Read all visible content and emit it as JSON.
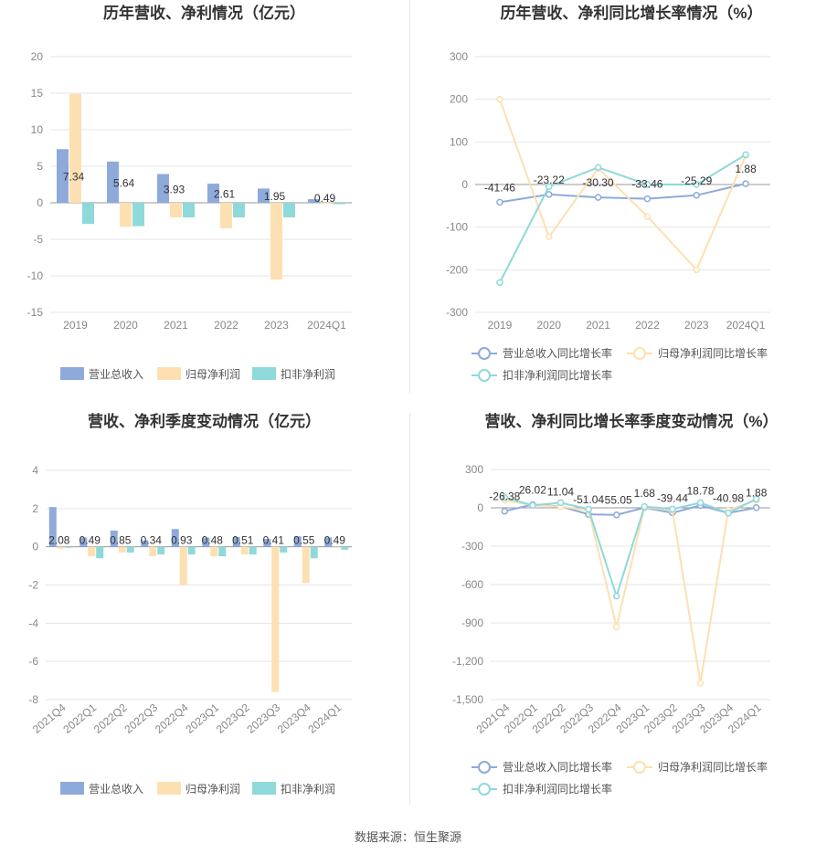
{
  "colors": {
    "revenue": "#8eaadb",
    "net_profit": "#fde0b2",
    "deducted_profit": "#8fd9da",
    "grid": "#e6e6e6",
    "axis_text": "#888888",
    "title_text": "#333333"
  },
  "source_text": "数据来源：恒生聚源",
  "chart_data": [
    {
      "type": "bar",
      "title": "历年营收、净利情况（亿元）",
      "categories": [
        "2019",
        "2020",
        "2021",
        "2022",
        "2023",
        "2024Q1"
      ],
      "ylim": [
        -15,
        20
      ],
      "yticks": [
        20,
        15,
        10,
        5,
        0,
        -5,
        -10,
        -15
      ],
      "series": [
        {
          "name": "营业总收入",
          "values": [
            7.34,
            5.64,
            3.93,
            2.61,
            1.95,
            0.49
          ]
        },
        {
          "name": "归母净利润",
          "values": [
            14.9,
            -3.3,
            -2.0,
            -3.5,
            -10.5,
            0.0
          ]
        },
        {
          "name": "扣非净利润",
          "values": [
            -2.9,
            -3.2,
            -2.0,
            -2.0,
            -2.0,
            -0.2
          ]
        }
      ],
      "data_labels": [
        "7.34",
        "5.64",
        "3.93",
        "2.61",
        "1.95",
        "0.49"
      ],
      "legend": [
        "营业总收入",
        "归母净利润",
        "扣非净利润"
      ],
      "grid": true,
      "legend_position": "bottom"
    },
    {
      "type": "line",
      "title": "历年营收、净利同比增长率情况（%）",
      "categories": [
        "2019",
        "2020",
        "2021",
        "2022",
        "2023",
        "2024Q1"
      ],
      "ylim": [
        -300,
        300
      ],
      "yticks": [
        300,
        200,
        100,
        0,
        -100,
        -200,
        -300
      ],
      "series": [
        {
          "name": "营业总收入同比增长率",
          "values": [
            -41.46,
            -23.22,
            -30.3,
            -33.46,
            -25.29,
            1.88
          ]
        },
        {
          "name": "归母净利润同比增长率",
          "values": [
            200,
            -123,
            38,
            -75,
            -200,
            68
          ]
        },
        {
          "name": "扣非净利润同比增长率",
          "values": [
            -230,
            -5,
            40,
            0,
            0,
            70
          ]
        }
      ],
      "data_labels": [
        "-41.46",
        "-23.22",
        "-30.30",
        "-33.46",
        "-25.29",
        "1.88"
      ],
      "legend": [
        "营业总收入同比增长率",
        "归母净利润同比增长率",
        "扣非净利润同比增长率"
      ],
      "grid": true,
      "legend_position": "bottom"
    },
    {
      "type": "bar",
      "title": "营收、净利季度变动情况（亿元）",
      "categories": [
        "2021Q4",
        "2022Q1",
        "2022Q2",
        "2022Q3",
        "2022Q4",
        "2023Q1",
        "2023Q2",
        "2023Q3",
        "2023Q4",
        "2024Q1"
      ],
      "ylim": [
        -8,
        4
      ],
      "yticks": [
        4,
        2,
        0,
        -2,
        -4,
        -6,
        -8
      ],
      "series": [
        {
          "name": "营业总收入",
          "values": [
            2.08,
            0.49,
            0.85,
            0.34,
            0.93,
            0.48,
            0.51,
            0.41,
            0.55,
            0.49
          ]
        },
        {
          "name": "归母净利润",
          "values": [
            -0.1,
            -0.5,
            -0.3,
            -0.5,
            -2.0,
            -0.5,
            -0.4,
            -7.6,
            -1.9,
            -0.05
          ]
        },
        {
          "name": "扣非净利润",
          "values": [
            -0.05,
            -0.6,
            -0.3,
            -0.4,
            -0.4,
            -0.5,
            -0.4,
            -0.3,
            -0.6,
            -0.15
          ]
        }
      ],
      "data_labels": [
        "2.08",
        "0.49",
        "0.85",
        "0.34",
        "0.93",
        "0.48",
        "0.51",
        "0.41",
        "0.55",
        "0.49"
      ],
      "legend": [
        "营业总收入",
        "归母净利润",
        "扣非净利润"
      ],
      "grid": true,
      "legend_position": "bottom"
    },
    {
      "type": "line",
      "title": "营收、净利同比增长率季度变动情况（%）",
      "categories": [
        "2021Q4",
        "2022Q1",
        "2022Q2",
        "2022Q3",
        "2022Q4",
        "2023Q1",
        "2023Q2",
        "2023Q3",
        "2023Q4",
        "2024Q1"
      ],
      "ylim": [
        -1500,
        300
      ],
      "yticks": [
        300,
        0,
        -300,
        -600,
        -900,
        -1200,
        -1500
      ],
      "ytick_labels": [
        "300",
        "0",
        "-300",
        "-600",
        "-900",
        "-1,200",
        "-1,500"
      ],
      "series": [
        {
          "name": "营业总收入同比增长率",
          "values": [
            -26.38,
            26.02,
            11.04,
            -51.04,
            -55.05,
            1.68,
            -39.44,
            18.78,
            -40.98,
            1.88
          ]
        },
        {
          "name": "归母净利润同比增长率",
          "values": [
            60,
            20,
            10,
            -20,
            -930,
            5,
            -20,
            -1370,
            -20,
            60
          ]
        },
        {
          "name": "扣非净利润同比增长率",
          "values": [
            80,
            20,
            40,
            -10,
            -690,
            10,
            -10,
            40,
            -40,
            70
          ]
        }
      ],
      "data_labels": [
        "-26.38",
        "26.02",
        "11.04",
        "-51.04",
        "-55.05",
        "1.68",
        "-39.44",
        "18.78",
        "-40.98",
        "1.88"
      ],
      "legend": [
        "营业总收入同比增长率",
        "归母净利润同比增长率",
        "扣非净利润同比增长率"
      ],
      "grid": true,
      "legend_position": "bottom"
    }
  ]
}
